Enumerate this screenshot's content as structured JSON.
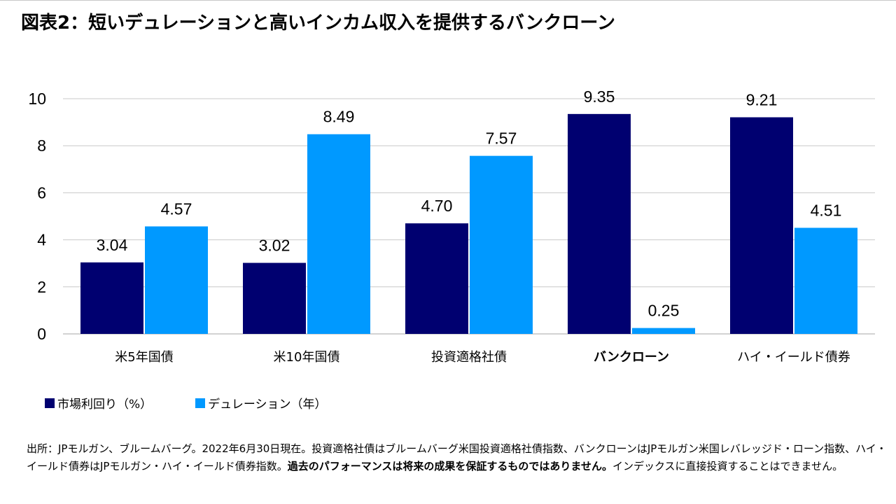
{
  "title": "図表2：短いデュレーションと高いインカム収入を提供するバンクローン",
  "colors": {
    "yield": "#000070",
    "duration": "#0099ff",
    "grid": "#c8c8c8",
    "baseline": "#a6a6a6"
  },
  "chart_data": {
    "type": "bar",
    "categories": [
      "米5年国債",
      "米10年国債",
      "投資適格社債",
      "バンクローン",
      "ハイ・イールド債券"
    ],
    "bold_category": "バンクローン",
    "series": [
      {
        "name": "市場利回り（%）",
        "values": [
          3.04,
          3.02,
          4.7,
          9.35,
          9.21
        ],
        "labels": [
          "3.04",
          "3.02",
          "4.70",
          "9.35",
          "9.21"
        ]
      },
      {
        "name": "デュレーション（年）",
        "values": [
          4.57,
          8.49,
          7.57,
          0.25,
          4.51
        ],
        "labels": [
          "4.57",
          "8.49",
          "7.57",
          "0.25",
          "4.51"
        ]
      }
    ],
    "ylim": [
      0,
      10
    ],
    "yticks": [
      "0",
      "2",
      "4",
      "6",
      "8",
      "10"
    ],
    "grid": true,
    "legend": "bottom-left"
  },
  "footnote": {
    "text1": "出所：JPモルガン、ブルームバーグ。2022年6月30日現在。投資適格社債はブルームバーグ米国投資適格社債指数、バンクローンはJPモルガン米国レバレッジド・ローン指数、ハイ・イールド債券はJPモルガン・ハイ・イールド債券指数。",
    "bold": "過去のパフォーマンスは将来の成果を保証するものではありません。",
    "text2": "インデックスに直接投資することはできません。"
  }
}
